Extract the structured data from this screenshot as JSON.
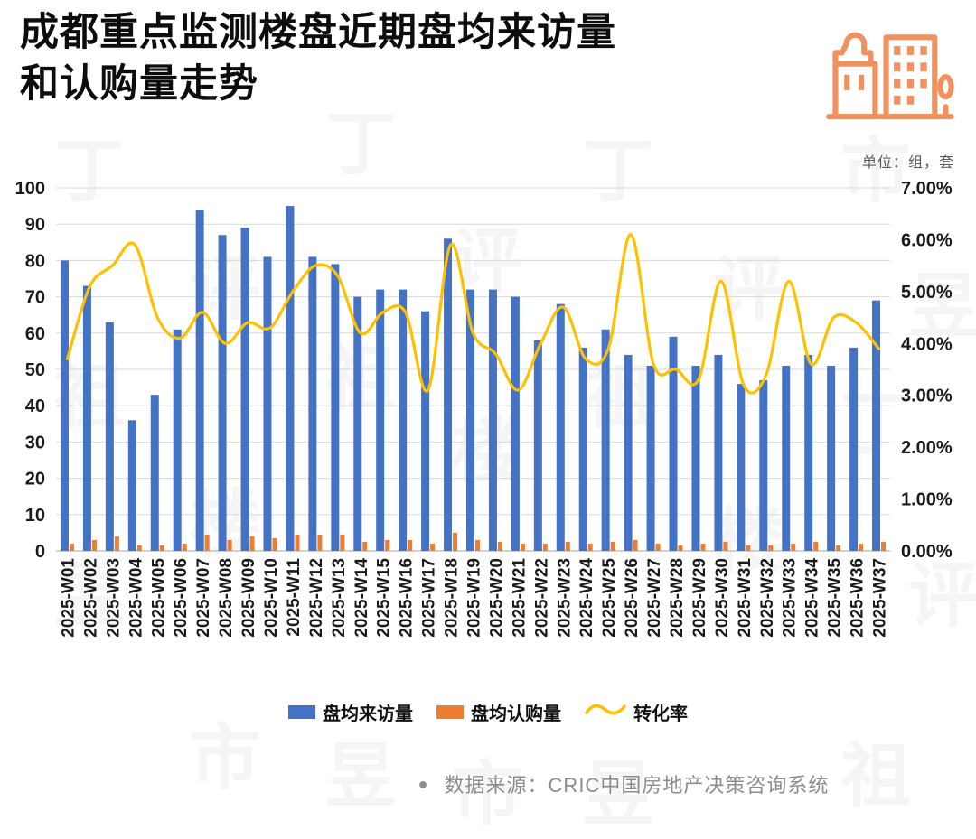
{
  "header": {
    "title_line1": "成都重点监测楼盘近期盘均来访量",
    "title_line2": "和认购量走势",
    "unit_label": "单位：组，套"
  },
  "watermark": {
    "text": "丁祖昱评楼市"
  },
  "chart_data": {
    "type": "bar",
    "subtype": "combo-bar-line",
    "title": "成都重点监测楼盘近期盘均来访量和认购量走势",
    "categories": [
      "2025-W01",
      "2025-W02",
      "2025-W03",
      "2025-W04",
      "2025-W05",
      "2025-W06",
      "2025-W07",
      "2025-W08",
      "2025-W09",
      "2025-W10",
      "2025-W11",
      "2025-W12",
      "2025-W13",
      "2025-W14",
      "2025-W15",
      "2025-W16",
      "2025-W17",
      "2025-W18",
      "2025-W19",
      "2025-W20",
      "2025-W21",
      "2025-W22",
      "2025-W23",
      "2025-W24",
      "2025-W25",
      "2025-W26",
      "2025-W27",
      "2025-W28",
      "2025-W29",
      "2025-W30",
      "2025-W31",
      "2025-W32",
      "2025-W33",
      "2025-W34",
      "2025-W35",
      "2025-W36",
      "2025-W37"
    ],
    "series": [
      {
        "name": "盘均来访量",
        "type": "bar",
        "axis": "left",
        "color": "#4472C4",
        "values": [
          80,
          73,
          63,
          36,
          43,
          61,
          94,
          87,
          89,
          81,
          95,
          81,
          79,
          70,
          72,
          72,
          66,
          86,
          72,
          72,
          70,
          58,
          68,
          56,
          61,
          54,
          51,
          59,
          51,
          54,
          46,
          47,
          51,
          54,
          51,
          56,
          69
        ]
      },
      {
        "name": "盘均认购量",
        "type": "bar",
        "axis": "left",
        "color": "#ED7D31",
        "values": [
          2,
          3,
          4,
          1.5,
          1.5,
          2,
          4.5,
          3,
          4,
          3.5,
          4.5,
          4.5,
          4.5,
          2.5,
          3,
          3,
          2,
          5,
          3,
          2.5,
          2,
          2,
          2.5,
          2,
          2.5,
          3,
          2,
          1.5,
          2,
          2.5,
          1.5,
          1.5,
          2,
          2.5,
          1.5,
          2,
          2.5
        ]
      },
      {
        "name": "转化率",
        "type": "line",
        "axis": "right",
        "color": "#FFC000",
        "values_percent": [
          3.7,
          5.1,
          5.5,
          5.9,
          4.5,
          4.1,
          4.6,
          4.0,
          4.4,
          4.3,
          5.0,
          5.5,
          5.3,
          4.2,
          4.6,
          4.6,
          3.1,
          5.9,
          4.2,
          3.8,
          3.1,
          4.0,
          4.7,
          3.7,
          3.9,
          6.1,
          3.6,
          3.5,
          3.3,
          5.2,
          3.2,
          3.4,
          5.2,
          3.6,
          4.5,
          4.4,
          3.9
        ]
      }
    ],
    "left_axis": {
      "min": 0,
      "max": 100,
      "step": 10
    },
    "right_axis": {
      "min": 0,
      "max": 7,
      "step": 1,
      "format": "percent_2dp"
    },
    "grid": true,
    "legend_position": "bottom",
    "xlabel": "",
    "ylabel": ""
  },
  "footer": {
    "bullet": "●",
    "source_text": "数据来源：CRIC中国房地产决策咨询系统"
  }
}
